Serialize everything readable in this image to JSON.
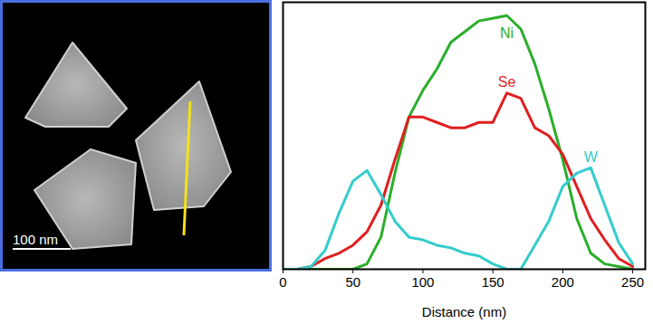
{
  "image": {
    "scale_bar_label": "100 nm"
  },
  "chart_data": {
    "type": "line",
    "x_label": "Distance (nm)",
    "x": [
      0,
      10,
      20,
      30,
      40,
      50,
      60,
      70,
      80,
      90,
      100,
      110,
      120,
      130,
      140,
      150,
      160,
      170,
      180,
      190,
      200,
      210,
      220,
      230,
      240,
      250
    ],
    "series": [
      {
        "name": "Ni",
        "color": "#2aae2a",
        "values": [
          0,
          0,
          0,
          0,
          0,
          0,
          2,
          12,
          36,
          57,
          67,
          75,
          85,
          89,
          93,
          94,
          95,
          90,
          77,
          60,
          41,
          19,
          6,
          2,
          1,
          0
        ]
      },
      {
        "name": "Se",
        "color": "#e01f1f",
        "values": [
          0,
          0,
          1,
          4,
          6,
          9,
          14,
          24,
          41,
          57,
          57,
          55,
          53,
          53,
          55,
          55,
          66,
          64,
          53,
          50,
          43,
          31,
          19,
          11,
          4,
          1
        ]
      },
      {
        "name": "W",
        "color": "#33cccc",
        "values": [
          0,
          0,
          1,
          7,
          21,
          33,
          37,
          28,
          18,
          12,
          11,
          9,
          8,
          6,
          5,
          2,
          0,
          0,
          9,
          18,
          31,
          36,
          38,
          24,
          10,
          2
        ]
      }
    ],
    "xlim": [
      0,
      259
    ],
    "xticks": [
      0,
      50,
      100,
      150,
      200,
      250
    ],
    "ylim": [
      0,
      100
    ],
    "yticks": [],
    "tick_labels": "x",
    "grid": false
  }
}
